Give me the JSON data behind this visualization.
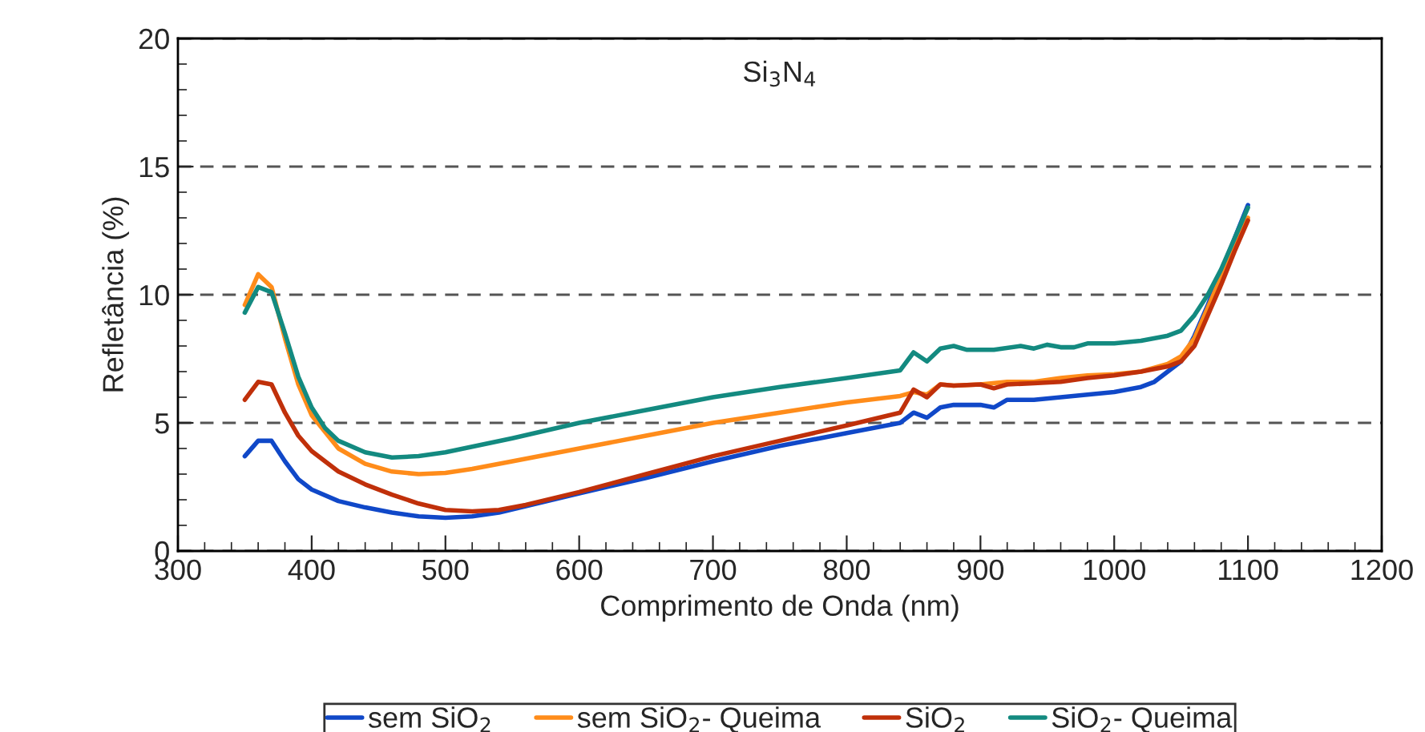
{
  "chart_data": {
    "type": "line",
    "title": "Si$_{3}$N$_{4}$",
    "xlabel": "Comprimento de Onda (nm)",
    "ylabel": "Refletância (%)",
    "xlim": [
      300,
      1200
    ],
    "xticks": [
      300,
      400,
      500,
      600,
      700,
      800,
      900,
      1000,
      1100,
      1200
    ],
    "ylim": [
      0,
      20
    ],
    "yticks": [
      0,
      5,
      10,
      15,
      20
    ],
    "grid": "y",
    "legend": "bottom",
    "line_style": "solid",
    "marker": "none",
    "series": [
      {
        "name": "sem SiO$_{2}$",
        "color": "#1048c8",
        "x": [
          350,
          360,
          370,
          380,
          390,
          400,
          420,
          440,
          460,
          480,
          500,
          520,
          540,
          560,
          580,
          600,
          650,
          700,
          750,
          800,
          840,
          850,
          860,
          870,
          880,
          900,
          910,
          920,
          940,
          960,
          980,
          1000,
          1020,
          1030,
          1040,
          1050,
          1060,
          1070,
          1080,
          1090,
          1100
        ],
        "values": [
          3.7,
          4.3,
          4.3,
          3.5,
          2.8,
          2.4,
          1.95,
          1.7,
          1.5,
          1.35,
          1.3,
          1.35,
          1.5,
          1.75,
          2.0,
          2.25,
          2.85,
          3.5,
          4.1,
          4.6,
          5.0,
          5.4,
          5.2,
          5.6,
          5.7,
          5.7,
          5.6,
          5.9,
          5.9,
          6.0,
          6.1,
          6.2,
          6.4,
          6.6,
          7.0,
          7.4,
          8.4,
          9.6,
          10.9,
          12.2,
          13.5
        ]
      },
      {
        "name": "sem SiO$_{2}$- Queima",
        "color": "#ff8c1a",
        "x": [
          350,
          360,
          370,
          380,
          390,
          400,
          420,
          440,
          460,
          480,
          500,
          520,
          550,
          600,
          650,
          700,
          750,
          800,
          840,
          850,
          860,
          870,
          880,
          900,
          920,
          940,
          960,
          980,
          1000,
          1020,
          1040,
          1050,
          1060,
          1070,
          1080,
          1090,
          1100
        ],
        "values": [
          9.6,
          10.8,
          10.3,
          8.3,
          6.5,
          5.3,
          4.0,
          3.4,
          3.1,
          3.0,
          3.05,
          3.2,
          3.5,
          4.0,
          4.5,
          5.0,
          5.4,
          5.8,
          6.05,
          6.2,
          6.1,
          6.5,
          6.45,
          6.5,
          6.6,
          6.6,
          6.75,
          6.85,
          6.9,
          7.0,
          7.3,
          7.6,
          8.3,
          9.5,
          10.7,
          12.0,
          13.0
        ]
      },
      {
        "name": "SiO$_{2}$",
        "color": "#c0300a",
        "x": [
          350,
          360,
          370,
          380,
          390,
          400,
          420,
          440,
          460,
          480,
          500,
          520,
          540,
          560,
          580,
          600,
          650,
          700,
          750,
          800,
          840,
          850,
          860,
          870,
          880,
          900,
          910,
          920,
          940,
          960,
          980,
          1000,
          1020,
          1040,
          1050,
          1060,
          1070,
          1080,
          1090,
          1100
        ],
        "values": [
          5.9,
          6.6,
          6.5,
          5.4,
          4.5,
          3.9,
          3.1,
          2.6,
          2.2,
          1.85,
          1.6,
          1.55,
          1.6,
          1.8,
          2.05,
          2.3,
          3.0,
          3.7,
          4.3,
          4.9,
          5.4,
          6.3,
          6.0,
          6.5,
          6.45,
          6.5,
          6.35,
          6.5,
          6.55,
          6.6,
          6.75,
          6.85,
          7.0,
          7.2,
          7.4,
          8.0,
          9.2,
          10.4,
          11.7,
          12.9
        ]
      },
      {
        "name": "SiO$_{2}$- Queima",
        "color": "#138a80",
        "x": [
          350,
          360,
          370,
          380,
          390,
          400,
          410,
          420,
          440,
          460,
          480,
          500,
          550,
          600,
          650,
          700,
          750,
          800,
          840,
          850,
          860,
          870,
          880,
          890,
          910,
          930,
          940,
          950,
          960,
          970,
          980,
          1000,
          1020,
          1040,
          1050,
          1060,
          1070,
          1080,
          1090,
          1100
        ],
        "values": [
          9.3,
          10.3,
          10.1,
          8.5,
          6.8,
          5.6,
          4.8,
          4.3,
          3.85,
          3.65,
          3.7,
          3.85,
          4.4,
          5.0,
          5.5,
          6.0,
          6.4,
          6.75,
          7.05,
          7.75,
          7.4,
          7.9,
          8.0,
          7.85,
          7.85,
          8.0,
          7.9,
          8.05,
          7.95,
          7.95,
          8.1,
          8.1,
          8.2,
          8.4,
          8.6,
          9.2,
          10.0,
          11.0,
          12.2,
          13.4
        ]
      }
    ]
  }
}
